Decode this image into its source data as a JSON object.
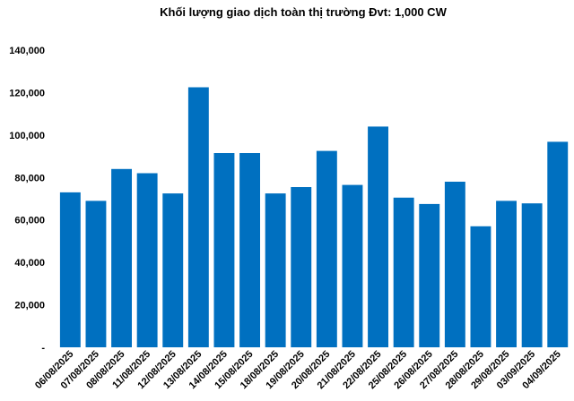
{
  "chart_data": {
    "type": "bar",
    "title": "Khối lượng giao dịch toàn thị trường Đvt: 1,000 CW",
    "xlabel": "",
    "ylabel": "",
    "ylim": [
      0,
      140000
    ],
    "yticks": [
      0,
      20000,
      40000,
      60000,
      80000,
      100000,
      120000,
      140000
    ],
    "ytick_labels": [
      "-",
      "20,000",
      "40,000",
      "60,000",
      "80,000",
      "100,000",
      "120,000",
      "140,000"
    ],
    "grid": false,
    "legend": "none",
    "bar_color": "#0070C0",
    "categories": [
      "06/08/2025",
      "07/08/2025",
      "08/08/2025",
      "11/08/2025",
      "12/08/2025",
      "13/08/2025",
      "14/08/2025",
      "15/08/2025",
      "18/08/2025",
      "19/08/2025",
      "20/08/2025",
      "21/08/2025",
      "22/08/2025",
      "25/08/2025",
      "26/08/2025",
      "27/08/2025",
      "28/08/2025",
      "29/08/2025",
      "03/09/2025",
      "04/09/2025"
    ],
    "values": [
      73000,
      69000,
      84000,
      82000,
      72500,
      122500,
      91500,
      91500,
      72500,
      75500,
      92500,
      76500,
      104000,
      70500,
      67500,
      78000,
      57000,
      69000,
      67800,
      96800
    ]
  }
}
